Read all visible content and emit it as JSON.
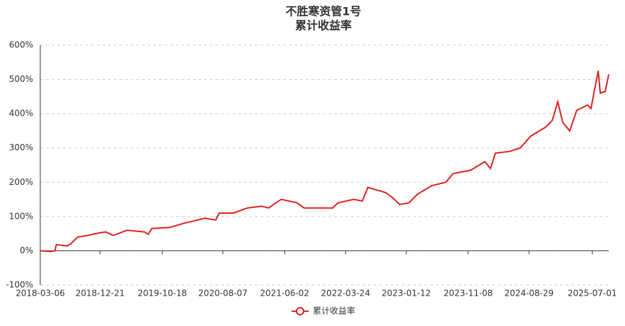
{
  "chart_data": {
    "type": "line",
    "title": "不胜寒资管1号",
    "subtitle": "累计收益率",
    "x": [
      "2018-03-06",
      "2018-04-26",
      "2018-05-16",
      "2018-05-23",
      "2018-07-14",
      "2018-07-31",
      "2018-09-03",
      "2018-10-24",
      "2018-12-15",
      "2019-01-18",
      "2019-02-21",
      "2019-03-27",
      "2019-04-30",
      "2019-07-25",
      "2019-08-11",
      "2019-08-28",
      "2019-11-22",
      "2020-01-29",
      "2020-05-12",
      "2020-07-03",
      "2020-07-20",
      "2020-09-27",
      "2020-12-04",
      "2021-02-11",
      "2021-03-17",
      "2021-04-20",
      "2021-05-17",
      "2021-08-01",
      "2021-09-04",
      "2021-11-12",
      "2022-01-20",
      "2022-02-16",
      "2022-05-03",
      "2022-06-13",
      "2022-07-10",
      "2022-10-04",
      "2022-11-07",
      "2022-12-11",
      "2023-01-25",
      "2023-03-07",
      "2023-05-15",
      "2023-07-23",
      "2023-08-26",
      "2023-11-20",
      "2024-01-28",
      "2024-02-24",
      "2024-03-19",
      "2024-05-27",
      "2024-07-17",
      "2024-09-07",
      "2024-11-15",
      "2024-12-19",
      "2025-01-15",
      "2025-02-08",
      "2025-03-14",
      "2025-04-17",
      "2025-06-08",
      "2025-06-25",
      "2025-07-30",
      "2025-08-09",
      "2025-09-02",
      "2025-09-19"
    ],
    "series": [
      {
        "name": "累计收益率",
        "color": "#dd2222",
        "values": [
          0,
          -2,
          0,
          18,
          14,
          20,
          40,
          45,
          52,
          55,
          45,
          52,
          60,
          55,
          48,
          65,
          68,
          80,
          95,
          90,
          110,
          110,
          125,
          130,
          125,
          140,
          150,
          140,
          125,
          125,
          125,
          140,
          150,
          145,
          185,
          170,
          155,
          135,
          140,
          165,
          190,
          200,
          225,
          235,
          260,
          240,
          285,
          290,
          300,
          335,
          360,
          380,
          435,
          375,
          350,
          410,
          425,
          415,
          525,
          460,
          465,
          515
        ]
      }
    ],
    "xlim": [
      "2018-03-06",
      "2025-09-19"
    ],
    "xticks": [
      "2018-03-06",
      "2018-12-21",
      "2019-10-18",
      "2020-08-07",
      "2021-06-02",
      "2022-03-24",
      "2023-01-12",
      "2023-11-08",
      "2024-08-29",
      "2025-07-01"
    ],
    "ylim": [
      -100,
      600
    ],
    "yticks": [
      {
        "value": -100,
        "label": "-100%"
      },
      {
        "value": 0,
        "label": "0%"
      },
      {
        "value": 100,
        "label": "100%"
      },
      {
        "value": 200,
        "label": "200%"
      },
      {
        "value": 300,
        "label": "300%"
      },
      {
        "value": 400,
        "label": "400%"
      },
      {
        "value": 500,
        "label": "500%"
      },
      {
        "value": 600,
        "label": "600%"
      }
    ],
    "grid": true,
    "legend": "bottom"
  }
}
